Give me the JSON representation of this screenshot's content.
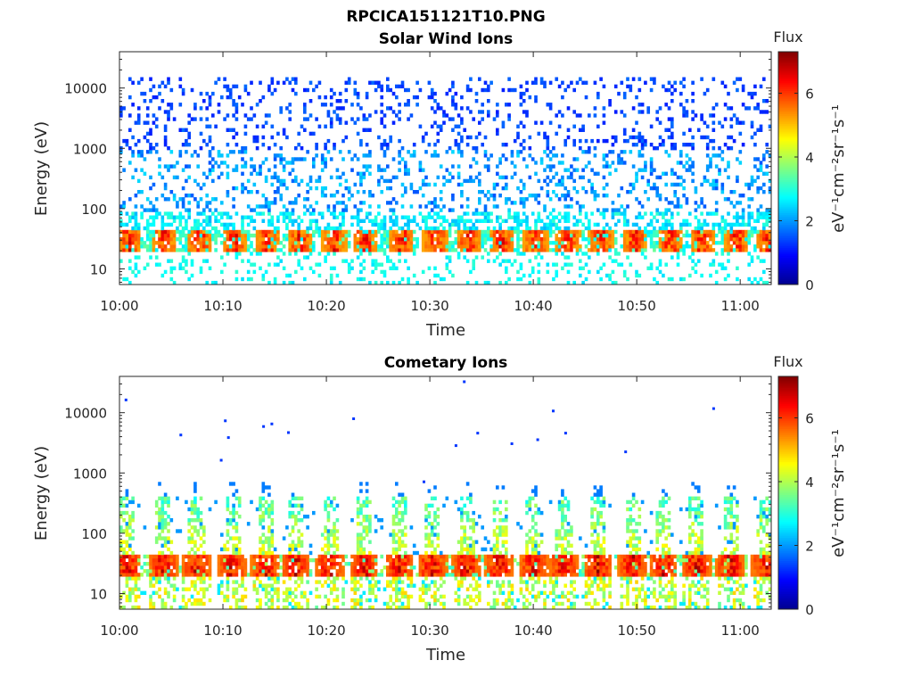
{
  "figure": {
    "title": "RPCICA151121T10.PNG"
  },
  "colors": {
    "colormap": [
      "#00008f",
      "#0000ff",
      "#0080ff",
      "#00ffff",
      "#80ff80",
      "#ffff00",
      "#ff8000",
      "#ff0000",
      "#800000"
    ],
    "axis": "#262626"
  },
  "chart_data": [
    {
      "type": "heatmap",
      "title": "Solar Wind Ions",
      "xlabel": "Time",
      "ylabel": "Energy (eV)",
      "x_ticks": [
        "10:00",
        "10:10",
        "10:20",
        "10:30",
        "10:40",
        "10:50",
        "11:00"
      ],
      "x_range": [
        "10:00",
        "11:03"
      ],
      "y_scale": "log",
      "y_ticks": [
        "10",
        "100",
        "1000",
        "10000"
      ],
      "y_range": [
        5.5,
        40000
      ],
      "colorbar": {
        "label": "Flux",
        "unit": "eV⁻¹cm⁻²sr⁻¹s⁻¹",
        "ticks": [
          "0",
          "2",
          "4",
          "6"
        ],
        "range": [
          0,
          7.3
        ]
      },
      "description_levels": {
        "background_high_energy": 1.5,
        "mid_band": 2.5,
        "peak_band_20_40eV": 6.5
      },
      "peak_times_min": [
        0.8,
        4.2,
        7.6,
        11,
        14.2,
        17.3,
        20.6,
        23.6,
        27.1,
        30.4,
        33.6,
        36.8,
        40.1,
        43.2,
        46.4,
        49.7,
        53.1,
        56.2,
        59.5,
        62.6
      ],
      "peak_energy_eV": [
        20,
        45
      ],
      "grid": false
    },
    {
      "type": "heatmap",
      "title": "Cometary Ions",
      "xlabel": "Time",
      "ylabel": "Energy (eV)",
      "x_ticks": [
        "10:00",
        "10:10",
        "10:20",
        "10:30",
        "10:40",
        "10:50",
        "11:00"
      ],
      "x_range": [
        "10:00",
        "11:03"
      ],
      "y_scale": "log",
      "y_ticks": [
        "10",
        "100",
        "1000",
        "10000"
      ],
      "y_range": [
        5.5,
        40000
      ],
      "colorbar": {
        "label": "Flux",
        "unit": "eV⁻¹cm⁻²sr⁻¹s⁻¹",
        "ticks": [
          "0",
          "2",
          "4",
          "6"
        ],
        "range": [
          0,
          7.3
        ]
      },
      "peak_times_min": [
        0.6,
        4.1,
        7.3,
        10.8,
        14.0,
        16.9,
        20.2,
        23.5,
        26.9,
        30.1,
        33.4,
        36.6,
        39.9,
        42.8,
        46.1,
        49.5,
        52.4,
        55.6,
        58.9,
        62.3
      ],
      "peak_energy_eV": [
        20,
        45
      ],
      "sparse_high_energy_points": [
        {
          "t": 0.5,
          "e": 16000
        },
        {
          "t": 5.8,
          "e": 4200
        },
        {
          "t": 10.1,
          "e": 7200
        },
        {
          "t": 10.4,
          "e": 3800
        },
        {
          "t": 13.8,
          "e": 5800
        },
        {
          "t": 14.6,
          "e": 6400
        },
        {
          "t": 16.2,
          "e": 4600
        },
        {
          "t": 22.5,
          "e": 7800
        },
        {
          "t": 33.2,
          "e": 32000
        },
        {
          "t": 32.4,
          "e": 2800
        },
        {
          "t": 34.5,
          "e": 4500
        },
        {
          "t": 37.8,
          "e": 3000
        },
        {
          "t": 40.3,
          "e": 3500
        },
        {
          "t": 41.8,
          "e": 10500
        },
        {
          "t": 43.0,
          "e": 4500
        },
        {
          "t": 48.8,
          "e": 2200
        },
        {
          "t": 57.3,
          "e": 11500
        },
        {
          "t": 9.7,
          "e": 1600
        },
        {
          "t": 29.3,
          "e": 700
        }
      ],
      "grid": false
    }
  ]
}
